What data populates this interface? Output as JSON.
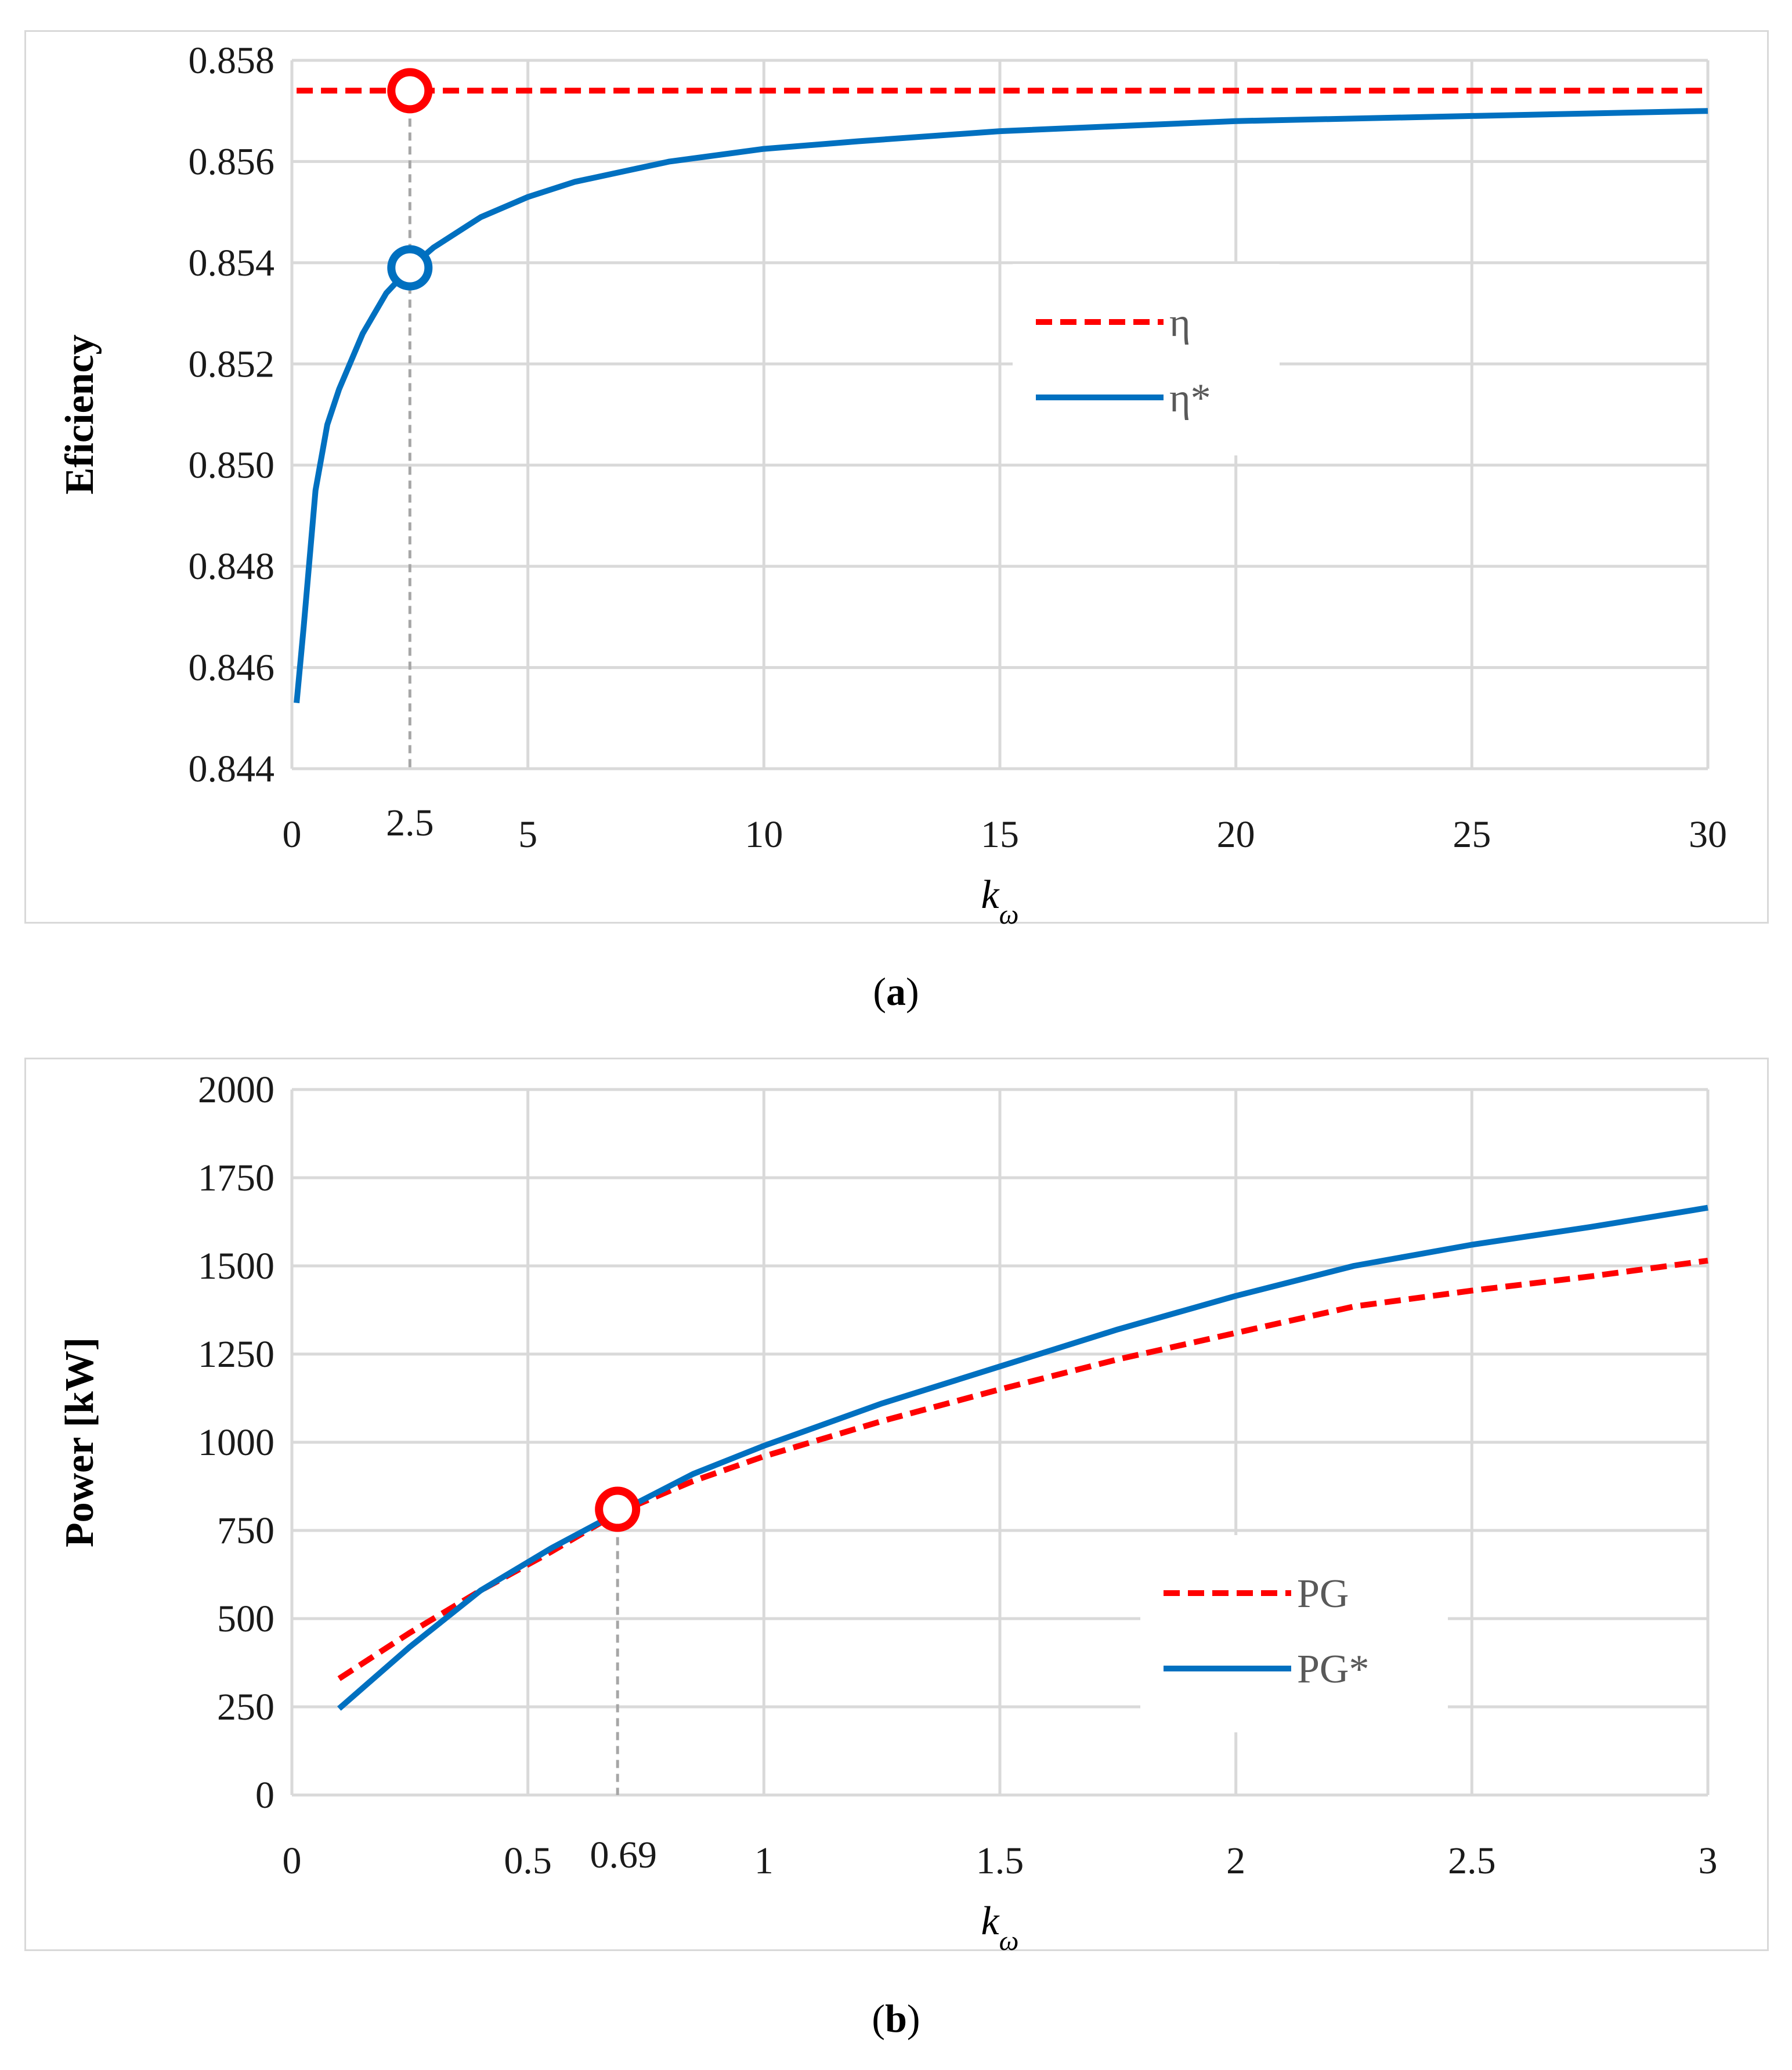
{
  "chart_data": [
    {
      "type": "line",
      "panel": "a",
      "caption": "(a)",
      "caption_letter": "a",
      "xlabel": "k",
      "xlabel_sub": "ω",
      "ylabel": "Eficiency",
      "xlim": [
        0,
        30
      ],
      "ylim": [
        0.844,
        0.858
      ],
      "xticks": [
        0,
        5,
        10,
        15,
        20,
        25,
        30
      ],
      "xtick_labels": [
        "0",
        "5",
        "10",
        "15",
        "20",
        "25",
        "30"
      ],
      "yticks": [
        0.844,
        0.846,
        0.848,
        0.85,
        0.852,
        0.854,
        0.856,
        0.858
      ],
      "ytick_labels": [
        "0.844",
        "0.846",
        "0.848",
        "0.850",
        "0.852",
        "0.854",
        "0.856",
        "0.858"
      ],
      "grid": true,
      "legend_position": "center-right",
      "annotation": {
        "x": 2.5,
        "label": "2.5"
      },
      "series": [
        {
          "name": "η",
          "style": "dashed",
          "color": "#ff0000",
          "x": [
            0.1,
            30
          ],
          "y": [
            0.8574,
            0.8574
          ],
          "marker": {
            "x": 2.5,
            "y": 0.8574
          }
        },
        {
          "name": "η*",
          "style": "solid",
          "color": "#0070c0",
          "x": [
            0.1,
            0.25,
            0.5,
            0.75,
            1.0,
            1.5,
            2.0,
            2.5,
            3.0,
            4.0,
            5.0,
            6.0,
            7.0,
            8.0,
            10.0,
            12.0,
            15.0,
            20.0,
            25.0,
            30.0
          ],
          "y": [
            0.8453,
            0.8468,
            0.8495,
            0.8508,
            0.8515,
            0.8526,
            0.8534,
            0.8539,
            0.8543,
            0.8549,
            0.8553,
            0.8556,
            0.8558,
            0.856,
            0.85625,
            0.8564,
            0.8566,
            0.8568,
            0.8569,
            0.857
          ],
          "marker": {
            "x": 2.5,
            "y": 0.8539
          }
        }
      ]
    },
    {
      "type": "line",
      "panel": "b",
      "caption": "(b)",
      "caption_letter": "b",
      "xlabel": "k",
      "xlabel_sub": "ω",
      "ylabel": "Power [kW]",
      "xlim": [
        0,
        3
      ],
      "ylim": [
        0,
        2000
      ],
      "xticks": [
        0,
        0.5,
        1,
        1.5,
        2,
        2.5,
        3
      ],
      "xtick_labels": [
        "0",
        "0.5",
        "1",
        "1.5",
        "2",
        "2.5",
        "3"
      ],
      "yticks": [
        0,
        250,
        500,
        750,
        1000,
        1250,
        1500,
        1750,
        2000
      ],
      "ytick_labels": [
        "0",
        "250",
        "500",
        "750",
        "1000",
        "1250",
        "1500",
        "1750",
        "2000"
      ],
      "grid": true,
      "legend_position": "bottom-right",
      "annotation": {
        "x": 0.69,
        "label": "0.69"
      },
      "series": [
        {
          "name": "PG",
          "style": "dashed",
          "color": "#ff0000",
          "x": [
            0.1,
            0.25,
            0.4,
            0.55,
            0.69,
            0.85,
            1.0,
            1.25,
            1.5,
            1.75,
            2.0,
            2.25,
            2.5,
            2.75,
            3.0
          ],
          "y": [
            330,
            460,
            580,
            690,
            800,
            890,
            960,
            1060,
            1150,
            1235,
            1310,
            1385,
            1430,
            1470,
            1515
          ],
          "marker": {
            "x": 0.69,
            "y": 810
          }
        },
        {
          "name": "PG*",
          "style": "solid",
          "color": "#0070c0",
          "x": [
            0.1,
            0.25,
            0.4,
            0.55,
            0.69,
            0.85,
            1.0,
            1.25,
            1.5,
            1.75,
            2.0,
            2.25,
            2.5,
            2.75,
            3.0
          ],
          "y": [
            245,
            420,
            580,
            700,
            800,
            910,
            990,
            1110,
            1215,
            1320,
            1415,
            1500,
            1560,
            1610,
            1665
          ]
        }
      ]
    }
  ]
}
